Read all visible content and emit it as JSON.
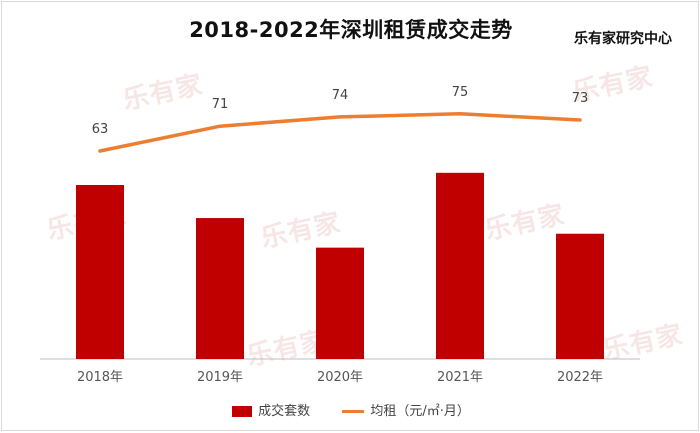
{
  "title": "2018-2022年深圳租赁成交走势",
  "source": "乐有家研究中心",
  "watermark": "乐有家",
  "colors": {
    "bar": "#c00000",
    "line": "#ed7d31",
    "axis": "#bfbfbf",
    "label": "#555555"
  },
  "chart_data": {
    "type": "bar",
    "categories": [
      "2018年",
      "2019年",
      "2020年",
      "2021年",
      "2022年"
    ],
    "series": [
      {
        "name": "成交套数",
        "type": "bar",
        "values": [
          100,
          81,
          64,
          107,
          72
        ]
      },
      {
        "name": "均租（元/㎡·月）",
        "type": "line",
        "values": [
          63,
          71,
          74,
          75,
          73
        ]
      }
    ],
    "grid": false,
    "legend_position": "bottom"
  }
}
